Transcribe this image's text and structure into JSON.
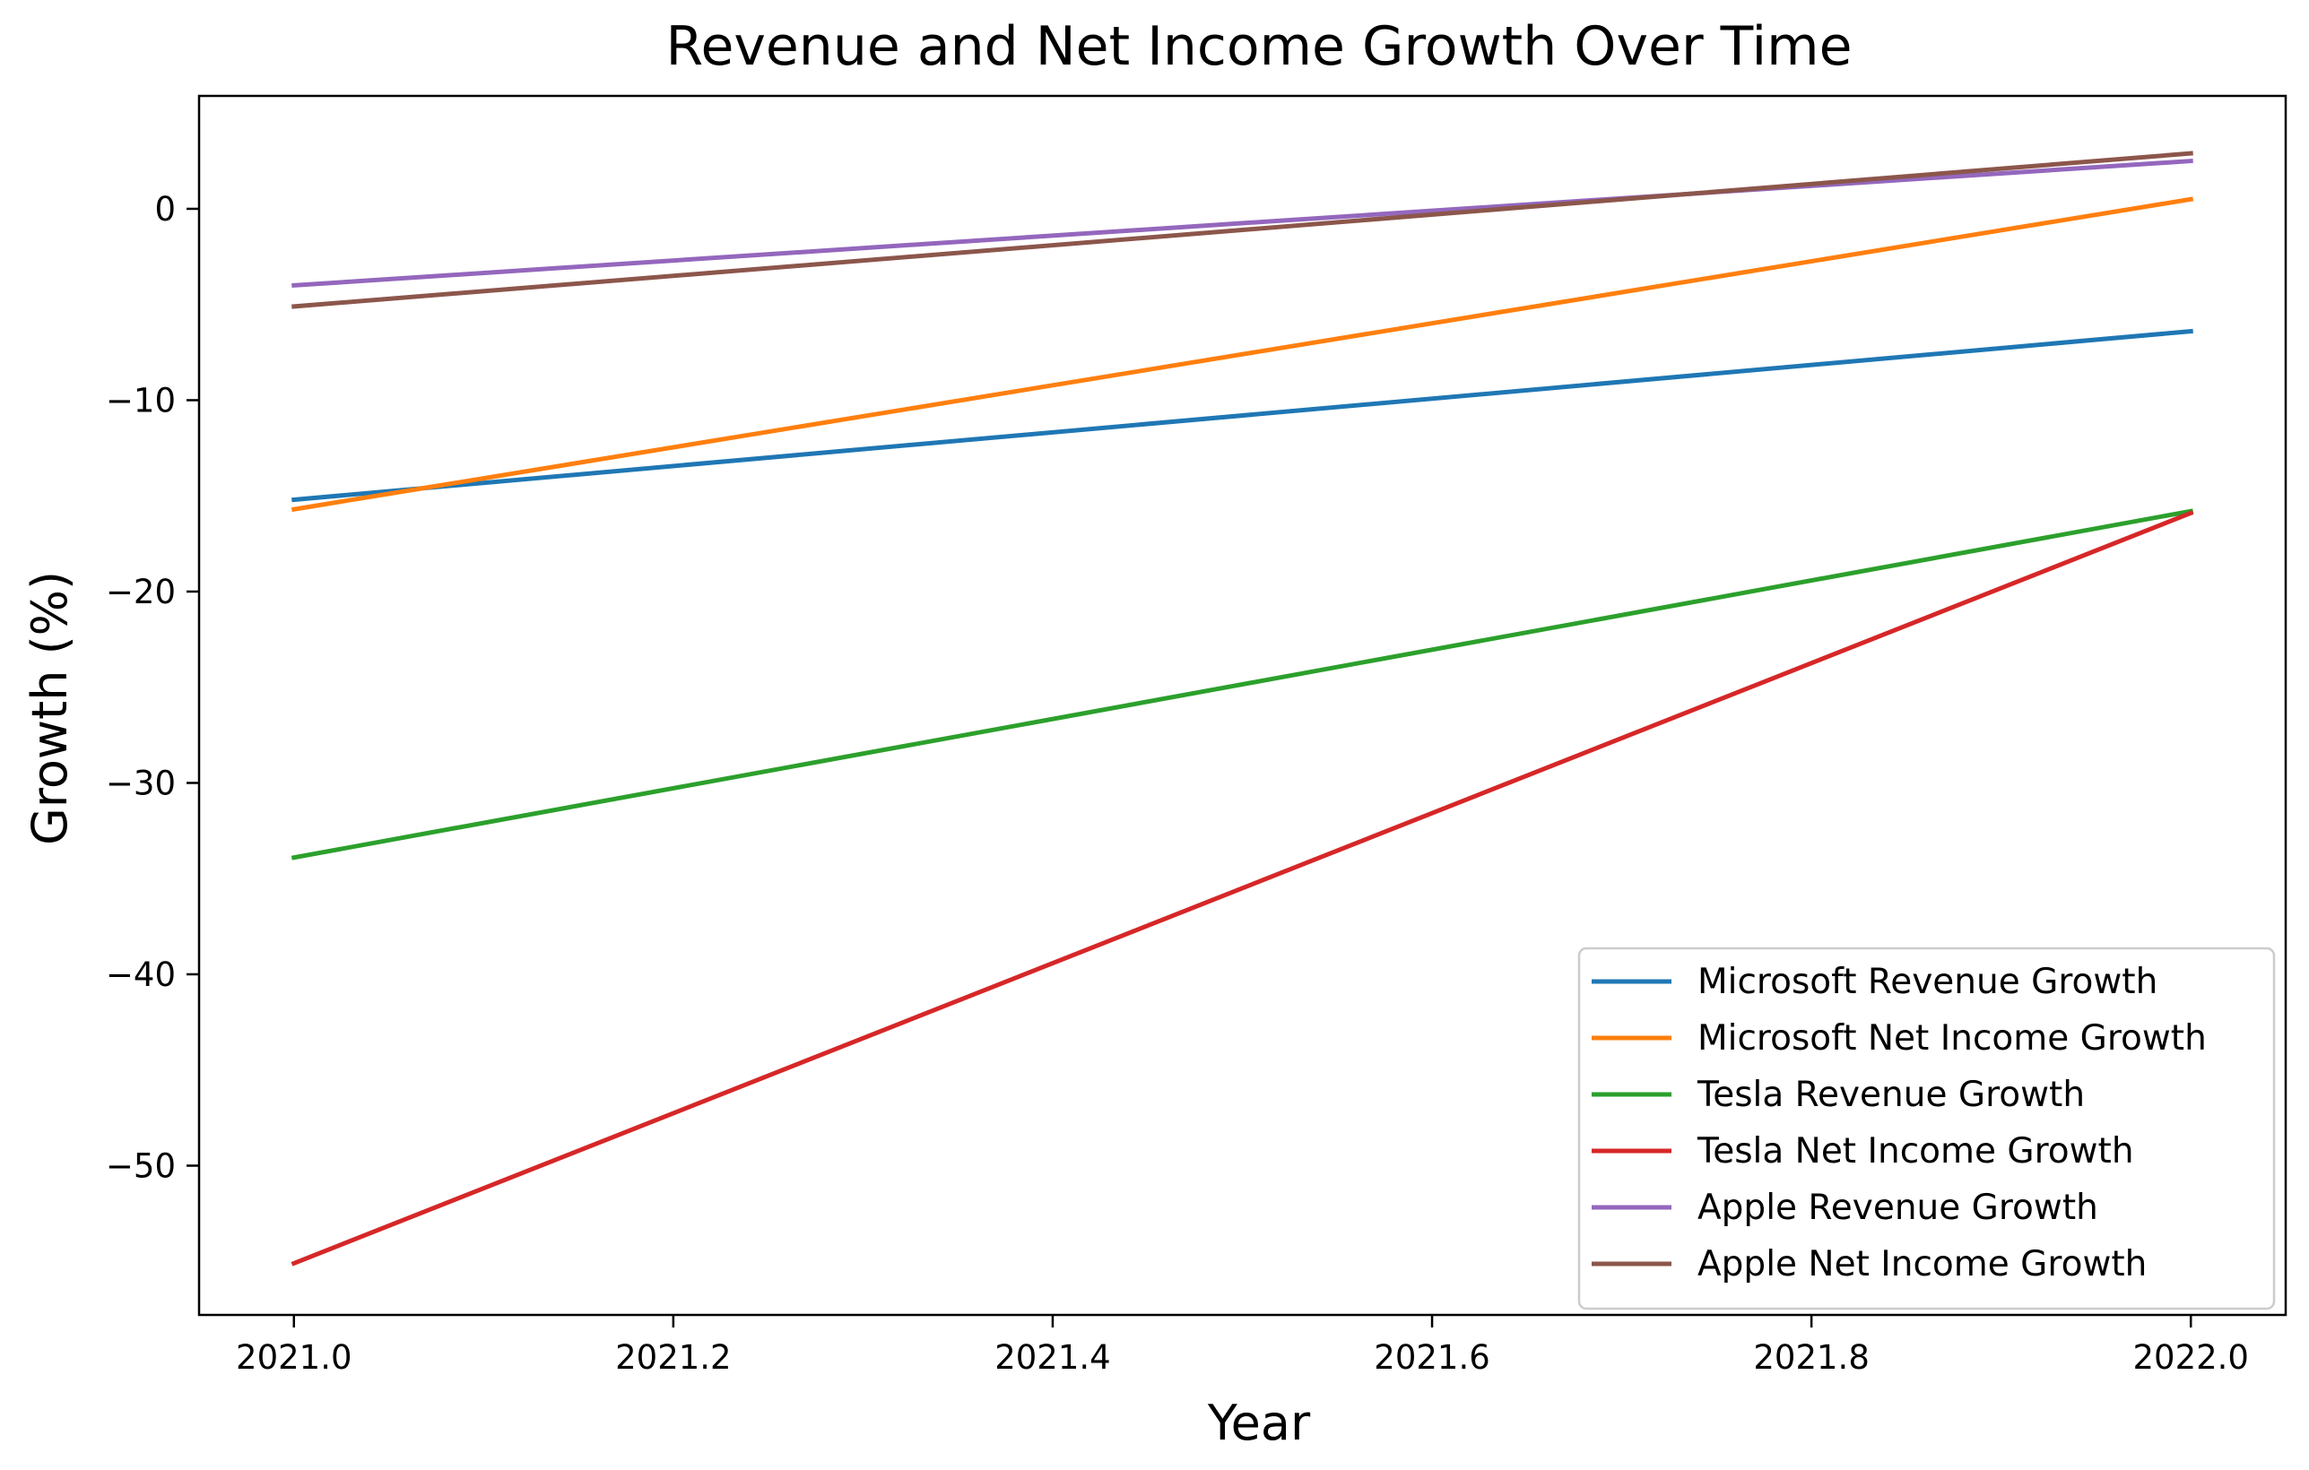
{
  "chart_data": {
    "type": "line",
    "title": "Revenue and Net Income Growth Over Time",
    "xlabel": "Year",
    "ylabel": "Growth (%)",
    "x": [
      2021.0,
      2022.0
    ],
    "xlim": [
      2020.95,
      2022.05
    ],
    "ylim": [
      -57.8,
      5.9
    ],
    "xticks": [
      2021.0,
      2021.2,
      2021.4,
      2021.6,
      2021.8,
      2022.0
    ],
    "xtick_labels": [
      "2021.0",
      "2021.2",
      "2021.4",
      "2021.6",
      "2021.8",
      "2022.0"
    ],
    "yticks": [
      0,
      -10,
      -20,
      -30,
      -40,
      -50
    ],
    "ytick_labels": [
      "0",
      "−10",
      "−20",
      "−30",
      "−40",
      "−50"
    ],
    "grid": false,
    "legend_position": "lower-right",
    "series": [
      {
        "name": "Microsoft  Revenue Growth",
        "color": "#1f77b4",
        "values": [
          -15.2,
          -6.4
        ]
      },
      {
        "name": "Microsoft  Net Income Growth",
        "color": "#ff7f0e",
        "values": [
          -15.7,
          0.5
        ]
      },
      {
        "name": "Tesla Revenue Growth",
        "color": "#2ca02c",
        "values": [
          -33.9,
          -15.8
        ]
      },
      {
        "name": "Tesla Net Income Growth",
        "color": "#d62728",
        "values": [
          -55.1,
          -15.9
        ]
      },
      {
        "name": "Apple Revenue Growth",
        "color": "#9467bd",
        "values": [
          -4.0,
          2.5
        ]
      },
      {
        "name": "Apple Net Income Growth",
        "color": "#8c564b",
        "values": [
          -5.1,
          2.9
        ]
      }
    ]
  }
}
